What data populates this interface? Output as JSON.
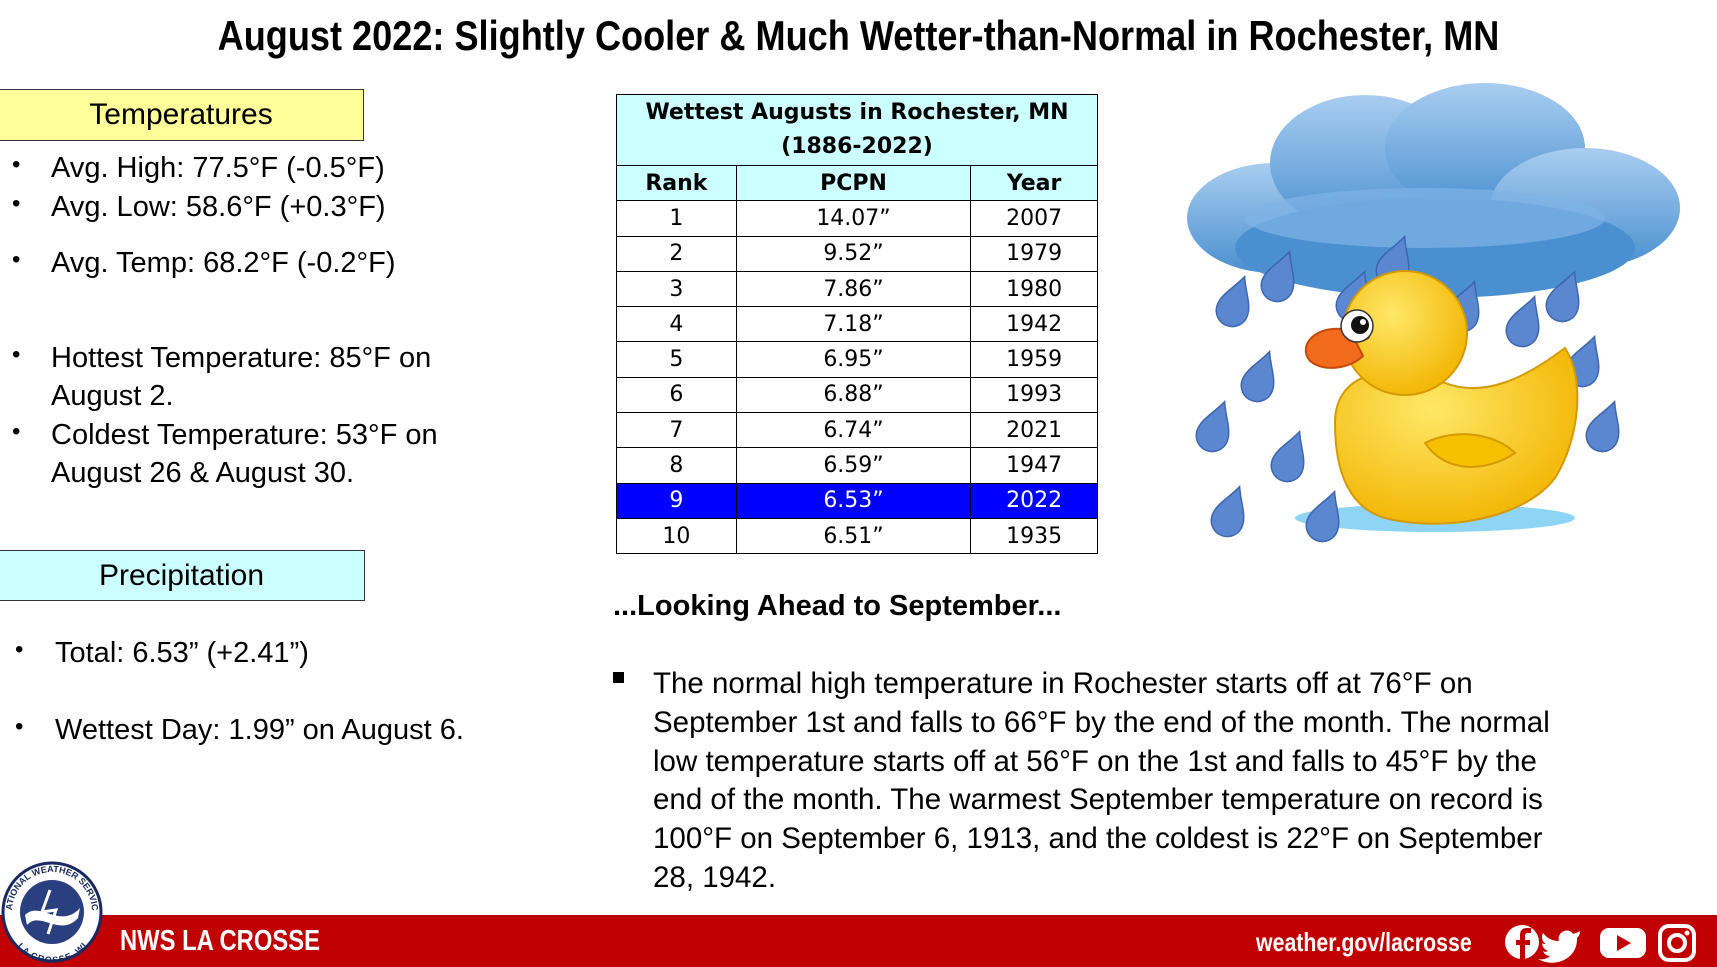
{
  "title": "August 2022:  Slightly Cooler & Much Wetter-than-Normal in Rochester, MN",
  "temperatures": {
    "heading": "Temperatures",
    "items": [
      [
        "Avg. High:  77.5°F (-0.5°F)"
      ],
      [
        "Avg. Low:  58.6°F (+0.3°F)"
      ],
      [
        "Avg. Temp:  68.2°F (-0.2°F)"
      ],
      [
        "Hottest Temperature: 85°F on",
        "August 2."
      ],
      [
        "Coldest Temperature: 53°F on",
        "August 26 & August 30."
      ]
    ]
  },
  "precipitation": {
    "heading": "Precipitation",
    "items": [
      [
        "Total:  6.53” (+2.41”)"
      ],
      [
        "Wettest Day: 1.99” on August 6."
      ]
    ]
  },
  "table": {
    "title": "Wettest Augusts in Rochester, MN",
    "subtitle": "(1886-2022)",
    "columns": [
      "Rank",
      "PCPN",
      "Year"
    ],
    "rows": [
      [
        "1",
        "14.07”",
        "2007"
      ],
      [
        "2",
        "9.52”",
        "1979"
      ],
      [
        "3",
        "7.86”",
        "1980"
      ],
      [
        "4",
        "7.18”",
        "1942"
      ],
      [
        "5",
        "6.95”",
        "1959"
      ],
      [
        "6",
        "6.88”",
        "1993"
      ],
      [
        "7",
        "6.74”",
        "2021"
      ],
      [
        "8",
        "6.59”",
        "1947"
      ],
      [
        "9",
        "6.53”",
        "2022"
      ],
      [
        "10",
        "6.51”",
        "1935"
      ]
    ],
    "highlight_row": 8,
    "highlight_color": "#0000ff"
  },
  "outlook": {
    "heading": "...Looking Ahead to September...",
    "lines": [
      "The normal high temperature in Rochester starts off at 76°F on",
      "September 1st and falls to 66°F by the end of the month. The normal",
      "low temperature starts off at 56°F on the 1st and falls to 45°F by the",
      "end of the month. The warmest September temperature on record is",
      "100°F on September 6, 1913, and the coldest is 22°F on September",
      "28, 1942."
    ]
  },
  "footer": {
    "logo_top": "NATIONAL WEATHER SERVICE",
    "logo_bottom": "LA CROSSE, WI",
    "left": "NWS LA CROSSE",
    "right": "weather.gov/lacrosse"
  }
}
